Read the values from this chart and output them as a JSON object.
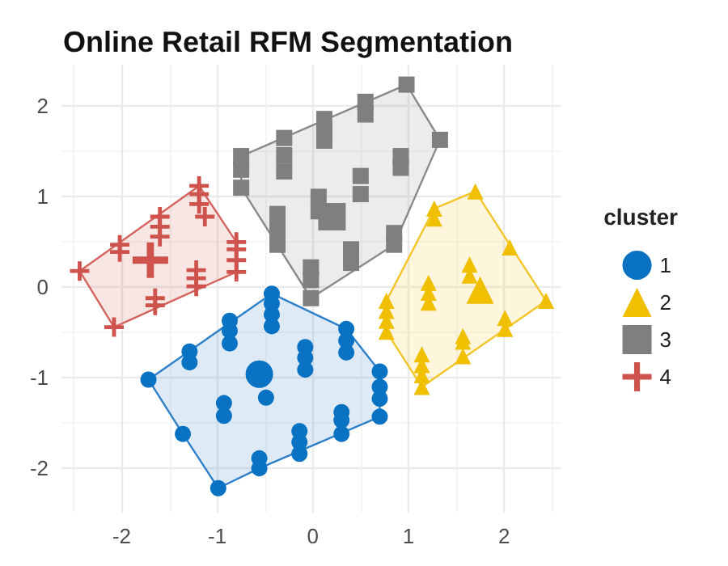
{
  "chart_data": {
    "type": "scatter",
    "title": "Online Retail RFM Segmentation",
    "legend_title": "cluster",
    "legend": "right",
    "grid": true,
    "xlim": [
      -2.63,
      2.6
    ],
    "xticks": [
      -2,
      -1,
      0,
      1,
      2
    ],
    "ylim": [
      -2.49,
      2.46
    ],
    "yticks": [
      -2,
      -1,
      0,
      1,
      2
    ],
    "series": [
      {
        "type": "area",
        "color": "#2f80c8",
        "x": [
          -0.43,
          0.35,
          0.7,
          0.7,
          -0.56,
          -0.99,
          -1.36,
          -1.72
        ],
        "values": [
          -0.07,
          -0.46,
          -0.93,
          -1.43,
          -2.0,
          -2.22,
          -1.62,
          -1.02
        ]
      },
      {
        "type": "area",
        "color": "#f2c52a",
        "x": [
          1.7,
          2.44,
          1.14,
          0.77,
          0.77,
          1.27
        ],
        "values": [
          1.06,
          -0.15,
          -1.1,
          -0.49,
          -0.15,
          0.87
        ]
      },
      {
        "type": "area",
        "color": "#8a8a8a",
        "x": [
          0.98,
          1.33,
          0.85,
          -0.02,
          -0.75,
          -0.75
        ],
        "values": [
          2.24,
          1.63,
          0.47,
          -0.12,
          1.1,
          1.45
        ]
      },
      {
        "type": "area",
        "color": "#d4645e",
        "x": [
          -1.19,
          -0.8,
          -0.8,
          -2.08,
          -2.44
        ],
        "values": [
          1.12,
          0.5,
          0.17,
          -0.44,
          0.18
        ]
      },
      {
        "name": "1",
        "color": "#0a72c2",
        "marker": "circle",
        "x": [
          -0.43,
          -0.43,
          -0.43,
          -0.43,
          -0.87,
          -0.87,
          -0.87,
          -1.29,
          -1.29,
          -1.72,
          -1.36,
          -0.99,
          -0.56,
          -0.56,
          -0.14,
          -0.14,
          -0.14,
          0.3,
          0.3,
          0.3,
          0.7,
          0.7,
          0.7,
          0.7,
          0.35,
          0.35,
          0.35,
          -0.08,
          -0.08,
          -0.08,
          -0.93,
          -0.93,
          -0.49
        ],
        "values": [
          -0.07,
          -0.18,
          -0.3,
          -0.43,
          -0.37,
          -0.48,
          -0.62,
          -0.71,
          -0.83,
          -1.02,
          -1.62,
          -2.22,
          -1.89,
          -2.0,
          -1.59,
          -1.71,
          -1.84,
          -1.38,
          -1.47,
          -1.62,
          -0.93,
          -1.1,
          -1.23,
          -1.43,
          -0.46,
          -0.59,
          -0.72,
          -0.66,
          -0.78,
          -0.91,
          -1.28,
          -1.42,
          -1.22
        ]
      },
      {
        "name": "2",
        "color": "#efbf00",
        "marker": "triangle",
        "x": [
          1.7,
          1.27,
          1.27,
          2.06,
          1.64,
          1.64,
          1.21,
          1.21,
          1.21,
          2.44,
          0.77,
          0.77,
          0.77,
          0.77,
          2.01,
          2.01,
          1.57,
          1.57,
          1.57,
          1.14,
          1.14,
          1.14,
          1.14
        ],
        "values": [
          1.06,
          0.87,
          0.76,
          0.44,
          0.25,
          0.13,
          0.05,
          -0.06,
          -0.17,
          -0.15,
          -0.15,
          -0.26,
          -0.37,
          -0.49,
          -0.34,
          -0.46,
          -0.54,
          -0.6,
          -0.76,
          -0.74,
          -0.86,
          -0.97,
          -1.1
        ]
      },
      {
        "name": "3",
        "color": "#7f7f7f",
        "marker": "square",
        "x": [
          0.98,
          1.33,
          0.55,
          0.55,
          0.12,
          0.12,
          0.12,
          -0.3,
          -0.3,
          -0.3,
          -0.75,
          -0.75,
          -0.75,
          0.92,
          0.92,
          0.5,
          0.5,
          0.06,
          0.06,
          -0.37,
          -0.37,
          -0.37,
          0.85,
          0.85,
          0.4,
          0.4,
          -0.02,
          -0.02,
          -0.02
        ],
        "values": [
          2.24,
          1.63,
          2.05,
          1.91,
          1.86,
          1.74,
          1.62,
          1.65,
          1.46,
          1.28,
          1.45,
          1.3,
          1.1,
          1.45,
          1.32,
          1.23,
          1.03,
          1.0,
          0.84,
          0.81,
          0.64,
          0.47,
          0.6,
          0.47,
          0.42,
          0.27,
          0.22,
          0.08,
          -0.12
        ]
      },
      {
        "name": "4",
        "color": "#cd534c",
        "marker": "cross",
        "x": [
          -2.44,
          -2.08,
          -2.02,
          -2.02,
          -1.6,
          -1.6,
          -1.6,
          -1.19,
          -1.19,
          -1.19,
          -1.13,
          -0.8,
          -0.8,
          -0.8,
          -0.8,
          -1.22,
          -1.22,
          -1.22,
          -1.65,
          -1.65
        ],
        "values": [
          0.18,
          -0.44,
          0.47,
          0.39,
          0.78,
          0.67,
          0.56,
          1.12,
          1.03,
          0.92,
          0.78,
          0.5,
          0.42,
          0.3,
          0.17,
          0.19,
          0.1,
          0.01,
          -0.12,
          -0.2
        ]
      },
      {
        "color": "#0a72c2",
        "marker": "circle",
        "x": [
          -0.56
        ],
        "values": [
          -0.96
        ]
      },
      {
        "color": "#efbf00",
        "marker": "triangle",
        "x": [
          1.75
        ],
        "values": [
          -0.03
        ]
      },
      {
        "color": "#7f7f7f",
        "marker": "square",
        "x": [
          0.2
        ],
        "values": [
          0.78
        ]
      },
      {
        "color": "#cd534c",
        "marker": "cross",
        "x": [
          -1.7
        ],
        "values": [
          0.3
        ]
      }
    ]
  }
}
